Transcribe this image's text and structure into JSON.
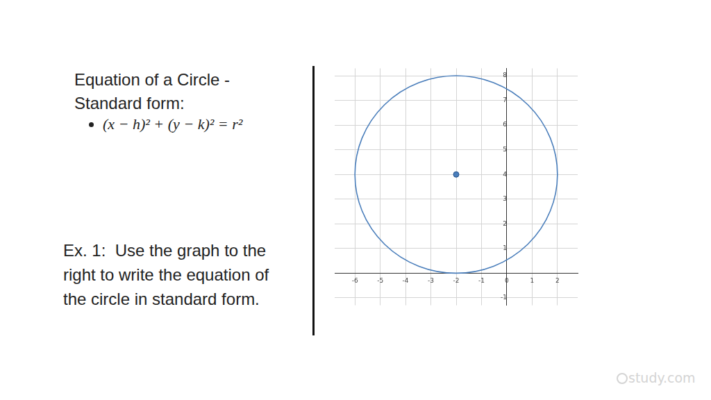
{
  "page": {
    "heading": "Equation of a Circle - Standard form:",
    "formula": "(x − h)² + (y − k)² = r²",
    "example": "Ex. 1:  Use the graph to the right to write the equation of the circle in standard form.",
    "watermark": "study.com"
  },
  "chart_data": {
    "type": "scatter",
    "circle": {
      "center_x": -2,
      "center_y": 4,
      "radius": 4
    },
    "color": "#4a7ebb",
    "xlim": [
      -6.8,
      2.8
    ],
    "ylim": [
      -1.3,
      8.3
    ],
    "xticks": [
      -6,
      -5,
      -4,
      -3,
      -2,
      -1,
      0,
      1,
      2
    ],
    "yticks": [
      -1,
      1,
      2,
      3,
      4,
      5,
      6,
      7,
      8
    ],
    "grid": true
  }
}
